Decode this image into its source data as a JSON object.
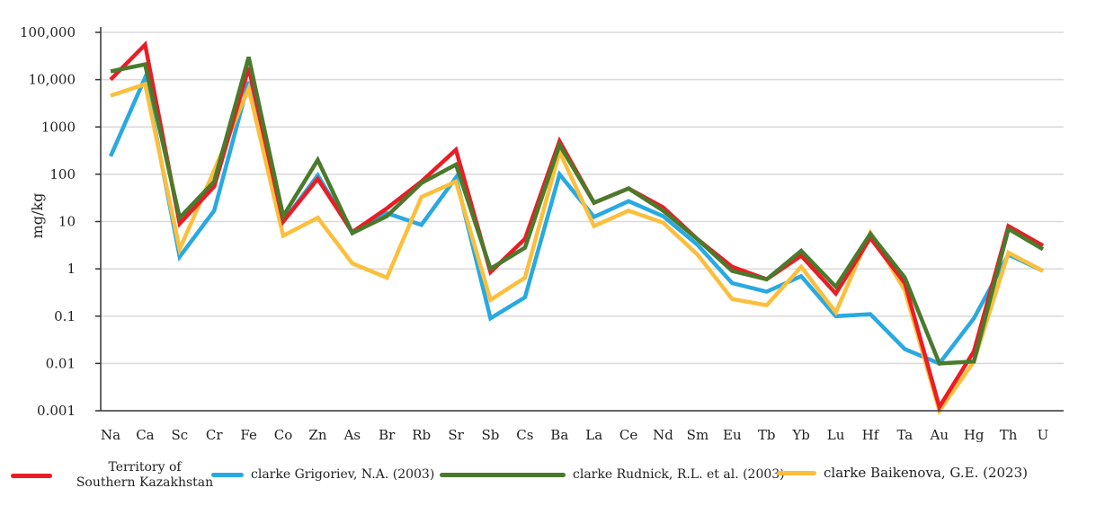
{
  "chart_data": {
    "type": "line",
    "title": "",
    "xlabel": "",
    "ylabel": "mg/kg",
    "yscale": "log",
    "ylim": [
      0.001,
      100000
    ],
    "grid": true,
    "legend_position": "bottom",
    "y_ticks": [
      {
        "value": 100000,
        "label": "100,000"
      },
      {
        "value": 10000,
        "label": "10,000"
      },
      {
        "value": 1000,
        "label": "1000"
      },
      {
        "value": 100,
        "label": "100"
      },
      {
        "value": 10,
        "label": "10"
      },
      {
        "value": 1,
        "label": "1"
      },
      {
        "value": 0.1,
        "label": "0.1"
      },
      {
        "value": 0.01,
        "label": "0.01"
      },
      {
        "value": 0.001,
        "label": "0.001"
      }
    ],
    "categories": [
      "Na",
      "Ca",
      "Sc",
      "Cr",
      "Fe",
      "Co",
      "Zn",
      "As",
      "Br",
      "Rb",
      "Sr",
      "Sb",
      "Cs",
      "Ba",
      "La",
      "Ce",
      "Nd",
      "Sm",
      "Eu",
      "Tb",
      "Yb",
      "Lu",
      "Hf",
      "Ta",
      "Au",
      "Hg",
      "Th",
      "U"
    ],
    "series": [
      {
        "name": "clarke Grigoriev, N.A. (2003)",
        "color": "#29a9e1",
        "values": [
          240,
          11000,
          1.8,
          17,
          9000,
          10,
          95,
          5.7,
          15,
          8.5,
          85,
          0.09,
          0.25,
          100,
          12.5,
          27,
          13,
          3.2,
          0.5,
          0.33,
          0.7,
          0.1,
          0.11,
          0.02,
          0.01,
          0.09,
          2,
          0.9
        ]
      },
      {
        "name": "clarke Baikenova, G.E. (2023)",
        "color": "#fbbf3c",
        "values": [
          4600,
          8000,
          2.6,
          120,
          6500,
          5,
          12,
          1.3,
          0.65,
          33,
          70,
          0.22,
          0.65,
          300,
          8,
          17,
          9.5,
          2,
          0.23,
          0.17,
          1.1,
          0.12,
          5.8,
          0.35,
          0.001,
          0.011,
          2.2,
          0.9
        ]
      },
      {
        "name": "Territory of Southern Kazakhstan",
        "color": "#ec1c24",
        "values": [
          10000,
          55000,
          9,
          55,
          18000,
          10,
          80,
          6,
          19,
          70,
          330,
          0.85,
          4.3,
          500,
          25,
          50,
          20,
          4.2,
          1.1,
          0.6,
          1.9,
          0.3,
          4.5,
          0.5,
          0.0012,
          0.018,
          8,
          3.1
        ]
      },
      {
        "name": "clarke Rudnick, R.L. et al. (2003)",
        "color": "#4a7a2c",
        "values": [
          15000,
          21000,
          12,
          70,
          30000,
          13,
          200,
          5.7,
          13,
          65,
          160,
          1.0,
          2.8,
          420,
          25,
          50,
          17,
          4.2,
          0.9,
          0.6,
          2.4,
          0.42,
          5.5,
          0.65,
          0.01,
          0.011,
          7,
          2.6
        ]
      }
    ]
  },
  "legend": [
    {
      "label_line1": "Territory of",
      "label_line2": "Southern Kazakhstan",
      "color": "#ec1c24"
    },
    {
      "label": "clarke Grigoriev, N.A. (2003)",
      "color": "#29a9e1"
    },
    {
      "label": "clarke Rudnick, R.L. et al. (2003)",
      "color": "#4a7a2c"
    },
    {
      "label": "clarke Baikenova, G.E. (2023)",
      "color": "#fbbf3c"
    }
  ]
}
